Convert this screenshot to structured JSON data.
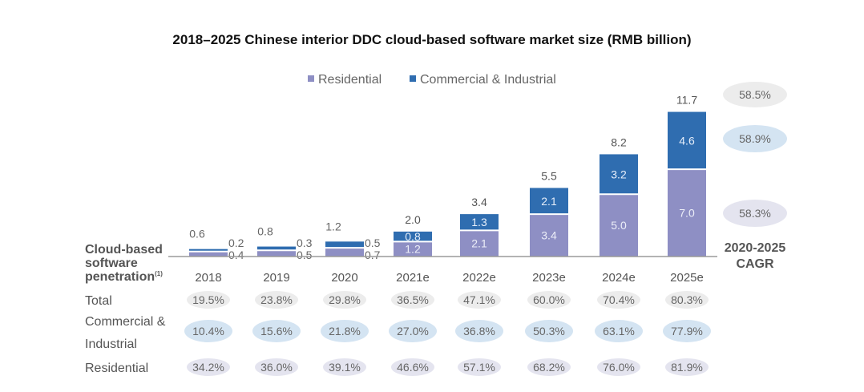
{
  "chart_data": {
    "type": "bar",
    "stacked": true,
    "title": "2018–2025 Chinese interior DDC cloud-based software market size (RMB billion)",
    "xlabel": "",
    "ylabel": "",
    "categories": [
      "2018",
      "2019",
      "2020",
      "2021e",
      "2022e",
      "2023e",
      "2024e",
      "2025e"
    ],
    "series": [
      {
        "name": "Residential",
        "color": "#8e8fc4",
        "values": [
          0.4,
          0.5,
          0.7,
          1.2,
          2.1,
          3.4,
          5.0,
          7.0
        ]
      },
      {
        "name": "Commercial & Industrial",
        "color": "#2f6db0",
        "values": [
          0.2,
          0.3,
          0.5,
          0.8,
          1.3,
          2.1,
          3.2,
          4.6
        ]
      }
    ],
    "totals": [
      0.6,
      0.8,
      1.2,
      2.0,
      3.4,
      5.5,
      8.2,
      11.7
    ],
    "ylim": [
      0,
      11.7
    ],
    "grid": false,
    "legend": [
      "Residential",
      "Commercial & Industrial"
    ],
    "legend_position": "top",
    "cagr": {
      "label": "2020-2025 CAGR",
      "total": "58.5%",
      "commercial_industrial": "58.9%",
      "residential": "58.3%"
    },
    "penetration_table": {
      "header": "Cloud-based software penetration",
      "header_superscript": "(1)",
      "rows": [
        {
          "label": "Total",
          "values": [
            "19.5%",
            "23.8%",
            "29.8%",
            "36.5%",
            "47.1%",
            "60.0%",
            "70.4%",
            "80.3%"
          ],
          "bubble_color": "#ececec"
        },
        {
          "label": "Commercial & Industrial",
          "values": [
            "10.4%",
            "15.6%",
            "21.8%",
            "27.0%",
            "36.8%",
            "50.3%",
            "63.1%",
            "77.9%"
          ],
          "bubble_color": "#d4e4f2"
        },
        {
          "label": "Residential",
          "values": [
            "34.2%",
            "36.0%",
            "39.1%",
            "46.6%",
            "57.1%",
            "68.2%",
            "76.0%",
            "81.9%"
          ],
          "bubble_color": "#e4e4ef"
        }
      ]
    }
  }
}
